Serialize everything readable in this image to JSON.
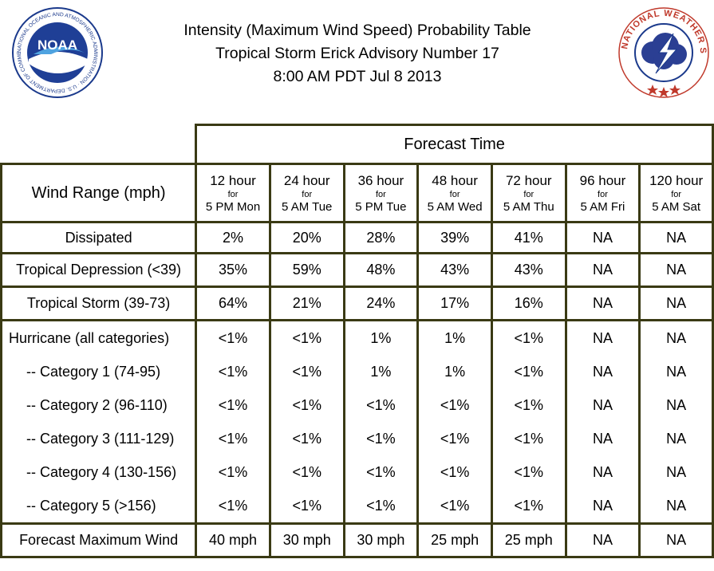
{
  "title_lines": [
    "Intensity (Maximum Wind Speed) Probability Table",
    "Tropical Storm Erick Advisory Number 17",
    "8:00 AM PDT Jul 8 2013"
  ],
  "logos": {
    "noaa_text": "NOAA",
    "noaa_ring": "NATIONAL OCEANIC AND ATMOSPHERIC ADMINISTRATION · U.S. DEPARTMENT OF COMMERCE",
    "nws_ring": "NATIONAL WEATHER SERVICE"
  },
  "table": {
    "forecast_time_label": "Forecast Time",
    "wind_range_label": "Wind Range (mph)",
    "columns": [
      {
        "hours": "12 hour",
        "for": "for",
        "when": "5 PM Mon"
      },
      {
        "hours": "24 hour",
        "for": "for",
        "when": "5 AM Tue"
      },
      {
        "hours": "36 hour",
        "for": "for",
        "when": "5 PM Tue"
      },
      {
        "hours": "48 hour",
        "for": "for",
        "when": "5 AM Wed"
      },
      {
        "hours": "72 hour",
        "for": "for",
        "when": "5 AM Thu"
      },
      {
        "hours": "96 hour",
        "for": "for",
        "when": "5 AM Fri"
      },
      {
        "hours": "120 hour",
        "for": "for",
        "when": "5 AM Sat"
      }
    ],
    "rows": {
      "dissipated": {
        "label": "Dissipated",
        "values": [
          "2%",
          "20%",
          "28%",
          "39%",
          "41%",
          "NA",
          "NA"
        ]
      },
      "td": {
        "label": "Tropical Depression (<39)",
        "values": [
          "35%",
          "59%",
          "48%",
          "43%",
          "43%",
          "NA",
          "NA"
        ]
      },
      "ts": {
        "label": "Tropical Storm (39-73)",
        "values": [
          "64%",
          "21%",
          "24%",
          "17%",
          "16%",
          "NA",
          "NA"
        ]
      },
      "hurricane": [
        {
          "label": "Hurricane (all categories)",
          "values": [
            "<1%",
            "<1%",
            "1%",
            "1%",
            "<1%",
            "NA",
            "NA"
          ]
        },
        {
          "label": "-- Category 1 (74-95)",
          "values": [
            "<1%",
            "<1%",
            "1%",
            "1%",
            "<1%",
            "NA",
            "NA"
          ]
        },
        {
          "label": "-- Category 2 (96-110)",
          "values": [
            "<1%",
            "<1%",
            "<1%",
            "<1%",
            "<1%",
            "NA",
            "NA"
          ]
        },
        {
          "label": "-- Category 3 (111-129)",
          "values": [
            "<1%",
            "<1%",
            "<1%",
            "<1%",
            "<1%",
            "NA",
            "NA"
          ]
        },
        {
          "label": "-- Category 4 (130-156)",
          "values": [
            "<1%",
            "<1%",
            "<1%",
            "<1%",
            "<1%",
            "NA",
            "NA"
          ]
        },
        {
          "label": "-- Category 5 (>156)",
          "values": [
            "<1%",
            "<1%",
            "<1%",
            "<1%",
            "<1%",
            "NA",
            "NA"
          ]
        }
      ],
      "max_wind": {
        "label": "Forecast Maximum Wind",
        "values": [
          "40 mph",
          "30 mph",
          "30 mph",
          "25 mph",
          "25 mph",
          "NA",
          "NA"
        ]
      }
    }
  }
}
